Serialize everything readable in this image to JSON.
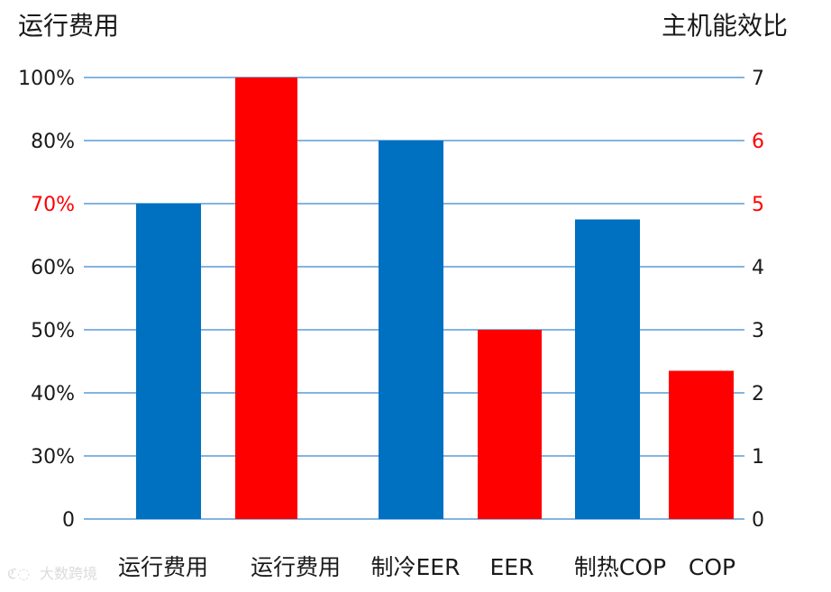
{
  "chart_data": {
    "type": "bar",
    "left_axis_title": "运行费用",
    "right_axis_title": "主机能效比",
    "left_ticks": [
      "0",
      "30%",
      "40%",
      "50%",
      "60%",
      "70%",
      "80%",
      "100%"
    ],
    "right_ticks": [
      "0",
      "1",
      "2",
      "3",
      "4",
      "5",
      "6",
      "7"
    ],
    "highlight_left_tick": "70%",
    "highlight_right_ticks": [
      "5",
      "6"
    ],
    "right_ylim": [
      0,
      7
    ],
    "grid": true,
    "categories": [
      "运行费用",
      "运行费用",
      "制冷EER",
      "EER",
      "制热COP",
      "COP"
    ],
    "values": [
      5,
      7,
      6,
      3,
      4.75,
      2.35
    ],
    "value_axis": "right",
    "bar_colors": [
      "#0070C0",
      "#FF0000",
      "#0070C0",
      "#FF0000",
      "#0070C0",
      "#FF0000"
    ]
  },
  "colors": {
    "blue": "#0070C0",
    "red": "#FF0000",
    "grid": "#5B9BD5",
    "text": "#1a1a1a"
  },
  "watermark": "大数跨境"
}
